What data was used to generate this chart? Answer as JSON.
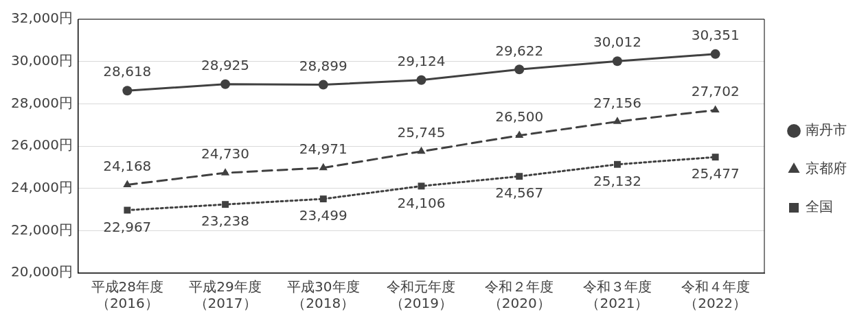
{
  "chart_data": {
    "type": "line",
    "categories": [
      "平成28年度（2016）",
      "平成29年度（2017）",
      "平成30年度（2018）",
      "令和元年度（2019）",
      "令和２年度（2020）",
      "令和３年度（2021）",
      "令和４年度（2022）"
    ],
    "series": [
      {
        "name": "南丹市",
        "color": "#404040",
        "marker": "circle",
        "line_style": "solid",
        "values": [
          28618,
          28925,
          28899,
          29124,
          29622,
          30012,
          30351
        ],
        "value_labels": [
          "28,618",
          "28,925",
          "28,899",
          "29,124",
          "29,622",
          "30,012",
          "30,351"
        ]
      },
      {
        "name": "京都府",
        "color": "#404040",
        "marker": "triangle",
        "line_style": "dashed",
        "values": [
          24168,
          24730,
          24971,
          25745,
          26500,
          27156,
          27702
        ],
        "value_labels": [
          "24,168",
          "24,730",
          "24,971",
          "25,745",
          "26,500",
          "27,156",
          "27,702"
        ]
      },
      {
        "name": "全国",
        "color": "#404040",
        "marker": "square",
        "line_style": "dotted",
        "values": [
          22967,
          23238,
          23499,
          24106,
          24567,
          25132,
          25477
        ],
        "value_labels": [
          "22,967",
          "23,238",
          "23,499",
          "24,106",
          "24,567",
          "25,132",
          "25,477"
        ]
      }
    ],
    "ylim": [
      20000,
      32000
    ],
    "yticks": [
      {
        "value": 20000,
        "label": "20,000円"
      },
      {
        "value": 22000,
        "label": "22,000円"
      },
      {
        "value": 24000,
        "label": "24,000円"
      },
      {
        "value": 26000,
        "label": "26,000円"
      },
      {
        "value": 28000,
        "label": "28,000円"
      },
      {
        "value": 30000,
        "label": "30,000円"
      },
      {
        "value": 32000,
        "label": "32,000円"
      }
    ],
    "grid": "y",
    "legend": "right"
  }
}
